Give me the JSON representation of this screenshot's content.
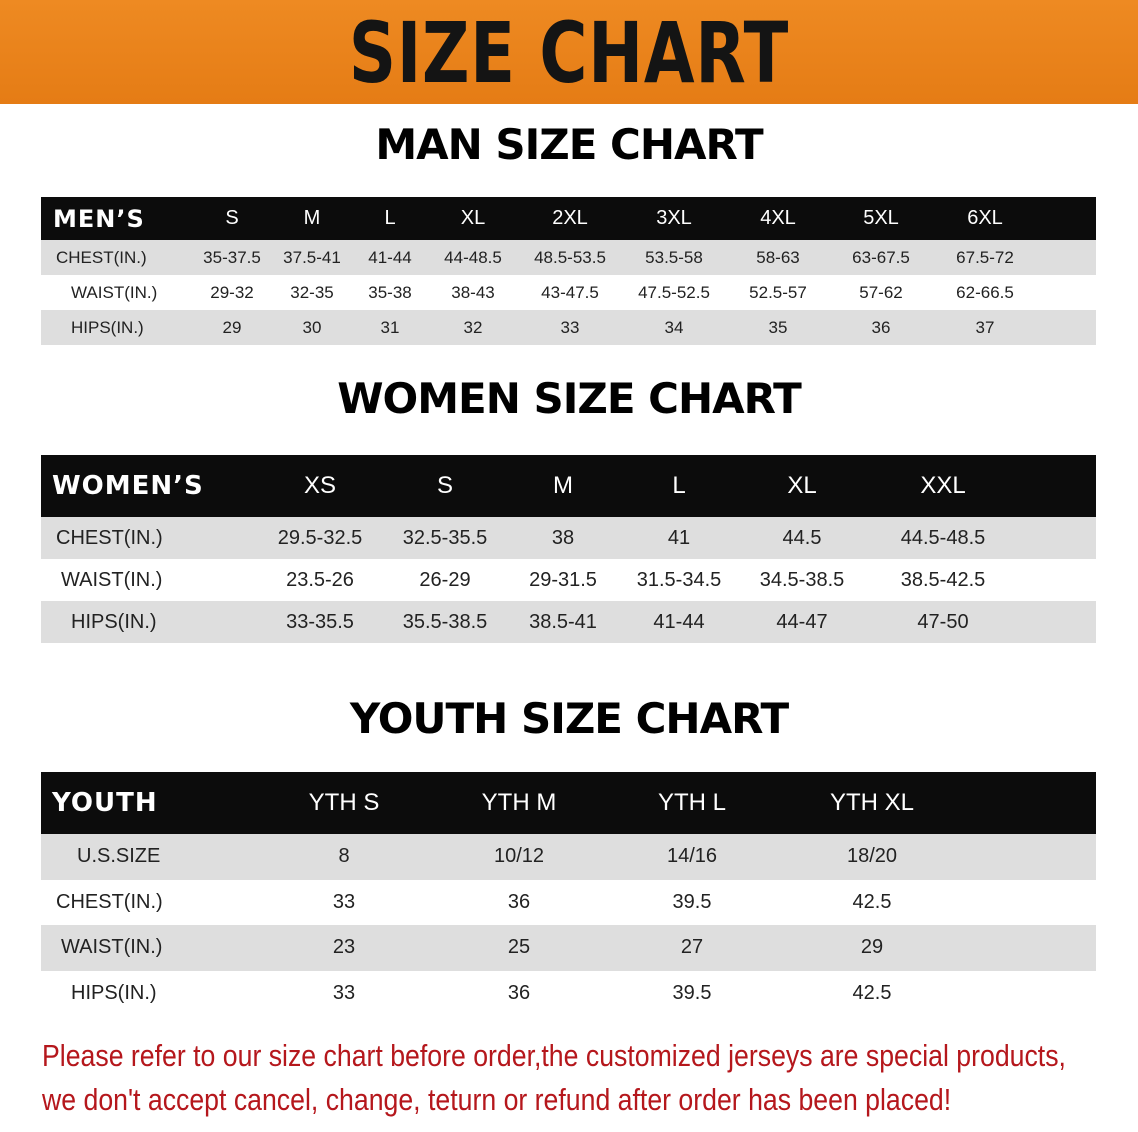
{
  "banner": {
    "title": "SIZE CHART",
    "color": "#e98318"
  },
  "men": {
    "title": "MAN SIZE CHART",
    "header": [
      "MEN’S",
      "S",
      "M",
      "L",
      "XL",
      "2XL",
      "3XL",
      "4XL",
      "5XL",
      "6XL"
    ],
    "rows": [
      [
        "CHEST(IN.)",
        "35-37.5",
        "37.5-41",
        "41-44",
        "44-48.5",
        "48.5-53.5",
        "53.5-58",
        "58-63",
        "63-67.5",
        "67.5-72"
      ],
      [
        "WAIST(IN.)",
        "29-32",
        "32-35",
        "35-38",
        "38-43",
        "43-47.5",
        "47.5-52.5",
        "52.5-57",
        "57-62",
        "62-66.5"
      ],
      [
        "HIPS(IN.)",
        "29",
        "30",
        "31",
        "32",
        "33",
        "34",
        "35",
        "36",
        "37"
      ]
    ]
  },
  "women": {
    "title": "WOMEN SIZE CHART",
    "header": [
      "WOMEN’S",
      "XS",
      "S",
      "M",
      "L",
      "XL",
      "XXL"
    ],
    "rows": [
      [
        "CHEST(IN.)",
        "29.5-32.5",
        "32.5-35.5",
        "38",
        "41",
        "44.5",
        "44.5-48.5"
      ],
      [
        "WAIST(IN.)",
        "23.5-26",
        "26-29",
        "29-31.5",
        "31.5-34.5",
        "34.5-38.5",
        "38.5-42.5"
      ],
      [
        "HIPS(IN.)",
        "33-35.5",
        "35.5-38.5",
        "38.5-41",
        "41-44",
        "44-47",
        "47-50"
      ]
    ]
  },
  "youth": {
    "title": "YOUTH SIZE CHART",
    "header": [
      "YOUTH",
      "YTH S",
      "YTH M",
      "YTH L",
      "YTH XL"
    ],
    "rows": [
      [
        "U.S.SIZE",
        "8",
        "10/12",
        "14/16",
        "18/20"
      ],
      [
        "CHEST(IN.)",
        "33",
        "36",
        "39.5",
        "42.5"
      ],
      [
        "WAIST(IN.)",
        "23",
        "25",
        "27",
        "29"
      ],
      [
        "HIPS(IN.)",
        "33",
        "36",
        "39.5",
        "42.5"
      ]
    ]
  },
  "notice": {
    "line1": "Please refer to our size chart before order,the customized jerseys are special products,",
    "line2": "we don't accept cancel, change, teturn or refund after order has been placed!",
    "color": "#b5171c"
  }
}
